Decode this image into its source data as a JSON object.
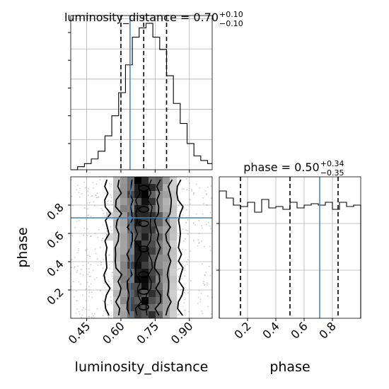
{
  "chart_data": {
    "type": "corner",
    "grid": true,
    "variables": [
      "luminosity_distance",
      "phase"
    ],
    "truths": {
      "luminosity_distance": 0.64,
      "phase": 0.71
    },
    "panels": [
      {
        "id": "hist-luminosity_distance",
        "type": "histogram",
        "variable": "luminosity_distance",
        "title_prefix": "luminosity_distance = 0.70",
        "title_sup": "+0.10",
        "title_sub": "−0.10",
        "xlim": [
          0.38,
          1.0
        ],
        "quantiles": [
          0.6,
          0.7,
          0.8
        ],
        "truth": 0.64,
        "ylim": [
          0,
          1.0
        ],
        "bins": {
          "edges": [
            0.38,
            0.41,
            0.44,
            0.47,
            0.5,
            0.53,
            0.56,
            0.59,
            0.62,
            0.65,
            0.68,
            0.71,
            0.74,
            0.77,
            0.8,
            0.83,
            0.86,
            0.89,
            0.92,
            0.95,
            0.98,
            1.0
          ],
          "counts": [
            0.0,
            0.02,
            0.04,
            0.07,
            0.12,
            0.22,
            0.35,
            0.5,
            0.68,
            0.86,
            0.92,
            0.95,
            0.86,
            0.78,
            0.61,
            0.43,
            0.3,
            0.17,
            0.09,
            0.06,
            0.04
          ]
        }
      },
      {
        "id": "scatter-luminosity_distance-phase",
        "type": "2d-density",
        "x": "luminosity_distance",
        "y": "phase",
        "xlim": [
          0.38,
          1.0
        ],
        "ylim": [
          0.0,
          1.0
        ],
        "truth": [
          0.64,
          0.71
        ],
        "xticks": [
          "0.45",
          "0.60",
          "0.75",
          "0.90"
        ],
        "xtick_values": [
          0.45,
          0.6,
          0.75,
          0.9
        ],
        "yticks": [
          "0.2",
          "0.4",
          "0.6",
          "0.8"
        ],
        "ytick_values": [
          0.2,
          0.4,
          0.6,
          0.8
        ],
        "xlabel": "luminosity_distance",
        "ylabel": "phase"
      },
      {
        "id": "hist-phase",
        "type": "histogram",
        "variable": "phase",
        "title_prefix": "phase = 0.50",
        "title_sup": "+0.34",
        "title_sub": "−0.35",
        "xlim": [
          0.0,
          1.0
        ],
        "quantiles": [
          0.15,
          0.5,
          0.84
        ],
        "truth": 0.71,
        "ylim": [
          0,
          1.0
        ],
        "bins": {
          "edges": [
            0.0,
            0.05,
            0.1,
            0.15,
            0.2,
            0.25,
            0.3,
            0.35,
            0.4,
            0.45,
            0.5,
            0.55,
            0.6,
            0.65,
            0.7,
            0.75,
            0.8,
            0.85,
            0.9,
            0.95,
            1.0
          ],
          "counts": [
            0.9,
            0.85,
            0.8,
            0.79,
            0.82,
            0.75,
            0.84,
            0.78,
            0.79,
            0.77,
            0.82,
            0.78,
            0.8,
            0.81,
            0.8,
            0.82,
            0.77,
            0.82,
            0.79,
            0.8
          ]
        },
        "xticks": [
          "0.2",
          "0.4",
          "0.6",
          "0.8"
        ],
        "xtick_values": [
          0.2,
          0.4,
          0.6,
          0.8
        ],
        "xlabel": "phase"
      }
    ]
  }
}
